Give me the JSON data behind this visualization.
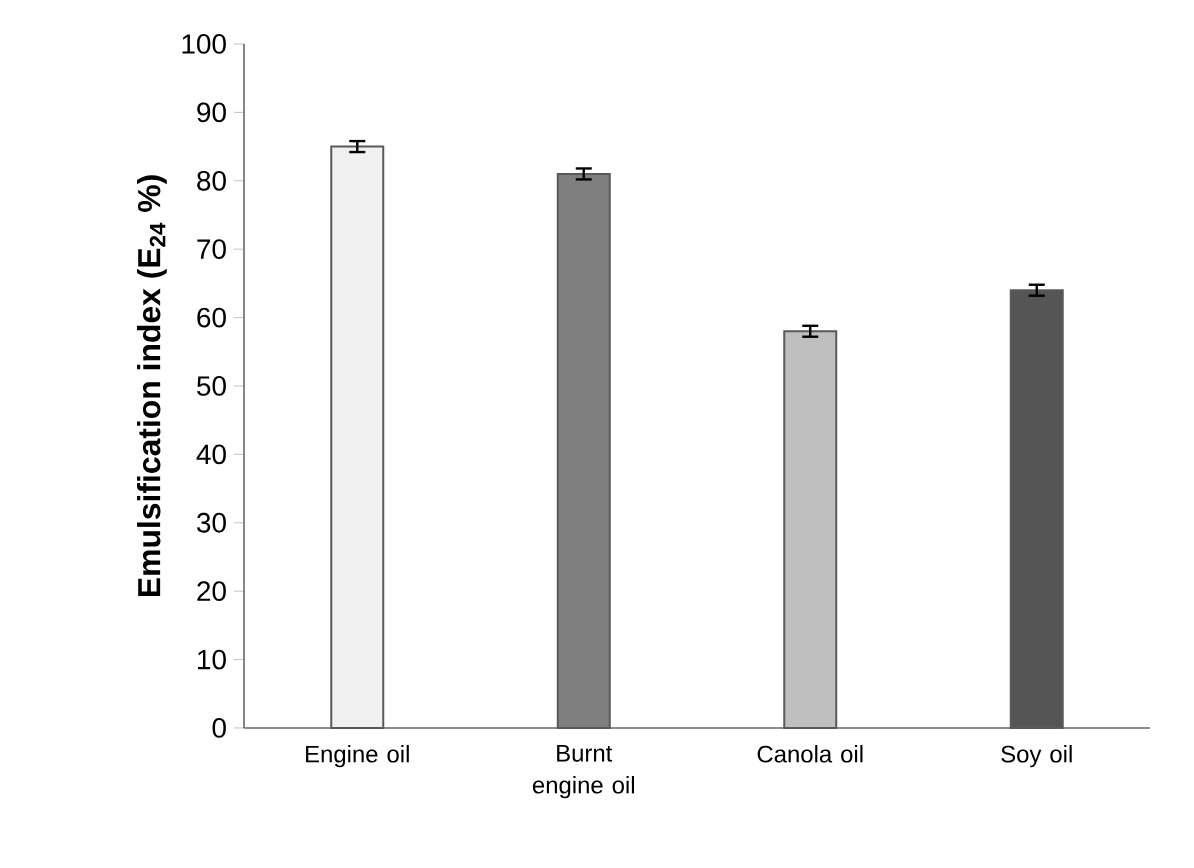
{
  "chart_data": {
    "type": "bar",
    "ylabel": "Emulsification index (E$_{24}$ %)",
    "categories": [
      "Engine oil",
      "Burnt engine  oil",
      "Canola oil",
      "Soy oil"
    ],
    "values": [
      85,
      81,
      58,
      64
    ],
    "errors": [
      0.8,
      0.8,
      0.8,
      0.8
    ],
    "colors": [
      "#f0f0f0",
      "#7f7f7f",
      "#bfbfbf",
      "#555555"
    ],
    "ylim": [
      0,
      100
    ],
    "yticks": [
      0,
      10,
      20,
      30,
      40,
      50,
      60,
      70,
      80,
      90,
      100
    ],
    "grid": false
  }
}
